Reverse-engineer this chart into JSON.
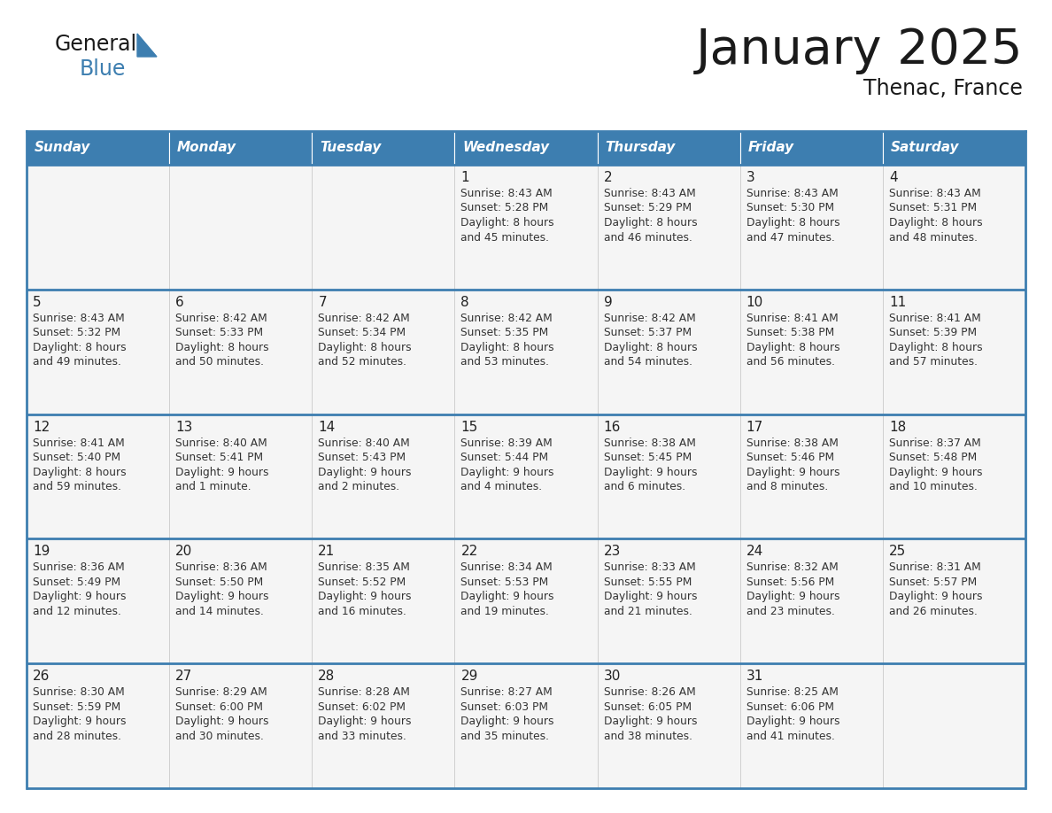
{
  "title": "January 2025",
  "subtitle": "Thenac, France",
  "days_of_week": [
    "Sunday",
    "Monday",
    "Tuesday",
    "Wednesday",
    "Thursday",
    "Friday",
    "Saturday"
  ],
  "header_bg": "#3d7eb0",
  "header_text_color": "#ffffff",
  "cell_bg": "#f5f5f5",
  "border_color": "#3d7eb0",
  "text_color": "#333333",
  "title_color": "#1a1a1a",
  "calendar_data": [
    [
      null,
      null,
      null,
      {
        "day": 1,
        "sunrise": "8:43 AM",
        "sunset": "5:28 PM",
        "dl1": "8 hours",
        "dl2": "and 45 minutes."
      },
      {
        "day": 2,
        "sunrise": "8:43 AM",
        "sunset": "5:29 PM",
        "dl1": "8 hours",
        "dl2": "and 46 minutes."
      },
      {
        "day": 3,
        "sunrise": "8:43 AM",
        "sunset": "5:30 PM",
        "dl1": "8 hours",
        "dl2": "and 47 minutes."
      },
      {
        "day": 4,
        "sunrise": "8:43 AM",
        "sunset": "5:31 PM",
        "dl1": "8 hours",
        "dl2": "and 48 minutes."
      }
    ],
    [
      {
        "day": 5,
        "sunrise": "8:43 AM",
        "sunset": "5:32 PM",
        "dl1": "8 hours",
        "dl2": "and 49 minutes."
      },
      {
        "day": 6,
        "sunrise": "8:42 AM",
        "sunset": "5:33 PM",
        "dl1": "8 hours",
        "dl2": "and 50 minutes."
      },
      {
        "day": 7,
        "sunrise": "8:42 AM",
        "sunset": "5:34 PM",
        "dl1": "8 hours",
        "dl2": "and 52 minutes."
      },
      {
        "day": 8,
        "sunrise": "8:42 AM",
        "sunset": "5:35 PM",
        "dl1": "8 hours",
        "dl2": "and 53 minutes."
      },
      {
        "day": 9,
        "sunrise": "8:42 AM",
        "sunset": "5:37 PM",
        "dl1": "8 hours",
        "dl2": "and 54 minutes."
      },
      {
        "day": 10,
        "sunrise": "8:41 AM",
        "sunset": "5:38 PM",
        "dl1": "8 hours",
        "dl2": "and 56 minutes."
      },
      {
        "day": 11,
        "sunrise": "8:41 AM",
        "sunset": "5:39 PM",
        "dl1": "8 hours",
        "dl2": "and 57 minutes."
      }
    ],
    [
      {
        "day": 12,
        "sunrise": "8:41 AM",
        "sunset": "5:40 PM",
        "dl1": "8 hours",
        "dl2": "and 59 minutes."
      },
      {
        "day": 13,
        "sunrise": "8:40 AM",
        "sunset": "5:41 PM",
        "dl1": "9 hours",
        "dl2": "and 1 minute."
      },
      {
        "day": 14,
        "sunrise": "8:40 AM",
        "sunset": "5:43 PM",
        "dl1": "9 hours",
        "dl2": "and 2 minutes."
      },
      {
        "day": 15,
        "sunrise": "8:39 AM",
        "sunset": "5:44 PM",
        "dl1": "9 hours",
        "dl2": "and 4 minutes."
      },
      {
        "day": 16,
        "sunrise": "8:38 AM",
        "sunset": "5:45 PM",
        "dl1": "9 hours",
        "dl2": "and 6 minutes."
      },
      {
        "day": 17,
        "sunrise": "8:38 AM",
        "sunset": "5:46 PM",
        "dl1": "9 hours",
        "dl2": "and 8 minutes."
      },
      {
        "day": 18,
        "sunrise": "8:37 AM",
        "sunset": "5:48 PM",
        "dl1": "9 hours",
        "dl2": "and 10 minutes."
      }
    ],
    [
      {
        "day": 19,
        "sunrise": "8:36 AM",
        "sunset": "5:49 PM",
        "dl1": "9 hours",
        "dl2": "and 12 minutes."
      },
      {
        "day": 20,
        "sunrise": "8:36 AM",
        "sunset": "5:50 PM",
        "dl1": "9 hours",
        "dl2": "and 14 minutes."
      },
      {
        "day": 21,
        "sunrise": "8:35 AM",
        "sunset": "5:52 PM",
        "dl1": "9 hours",
        "dl2": "and 16 minutes."
      },
      {
        "day": 22,
        "sunrise": "8:34 AM",
        "sunset": "5:53 PM",
        "dl1": "9 hours",
        "dl2": "and 19 minutes."
      },
      {
        "day": 23,
        "sunrise": "8:33 AM",
        "sunset": "5:55 PM",
        "dl1": "9 hours",
        "dl2": "and 21 minutes."
      },
      {
        "day": 24,
        "sunrise": "8:32 AM",
        "sunset": "5:56 PM",
        "dl1": "9 hours",
        "dl2": "and 23 minutes."
      },
      {
        "day": 25,
        "sunrise": "8:31 AM",
        "sunset": "5:57 PM",
        "dl1": "9 hours",
        "dl2": "and 26 minutes."
      }
    ],
    [
      {
        "day": 26,
        "sunrise": "8:30 AM",
        "sunset": "5:59 PM",
        "dl1": "9 hours",
        "dl2": "and 28 minutes."
      },
      {
        "day": 27,
        "sunrise": "8:29 AM",
        "sunset": "6:00 PM",
        "dl1": "9 hours",
        "dl2": "and 30 minutes."
      },
      {
        "day": 28,
        "sunrise": "8:28 AM",
        "sunset": "6:02 PM",
        "dl1": "9 hours",
        "dl2": "and 33 minutes."
      },
      {
        "day": 29,
        "sunrise": "8:27 AM",
        "sunset": "6:03 PM",
        "dl1": "9 hours",
        "dl2": "and 35 minutes."
      },
      {
        "day": 30,
        "sunrise": "8:26 AM",
        "sunset": "6:05 PM",
        "dl1": "9 hours",
        "dl2": "and 38 minutes."
      },
      {
        "day": 31,
        "sunrise": "8:25 AM",
        "sunset": "6:06 PM",
        "dl1": "9 hours",
        "dl2": "and 41 minutes."
      },
      null
    ]
  ],
  "fig_width": 11.88,
  "fig_height": 9.18,
  "dpi": 100
}
